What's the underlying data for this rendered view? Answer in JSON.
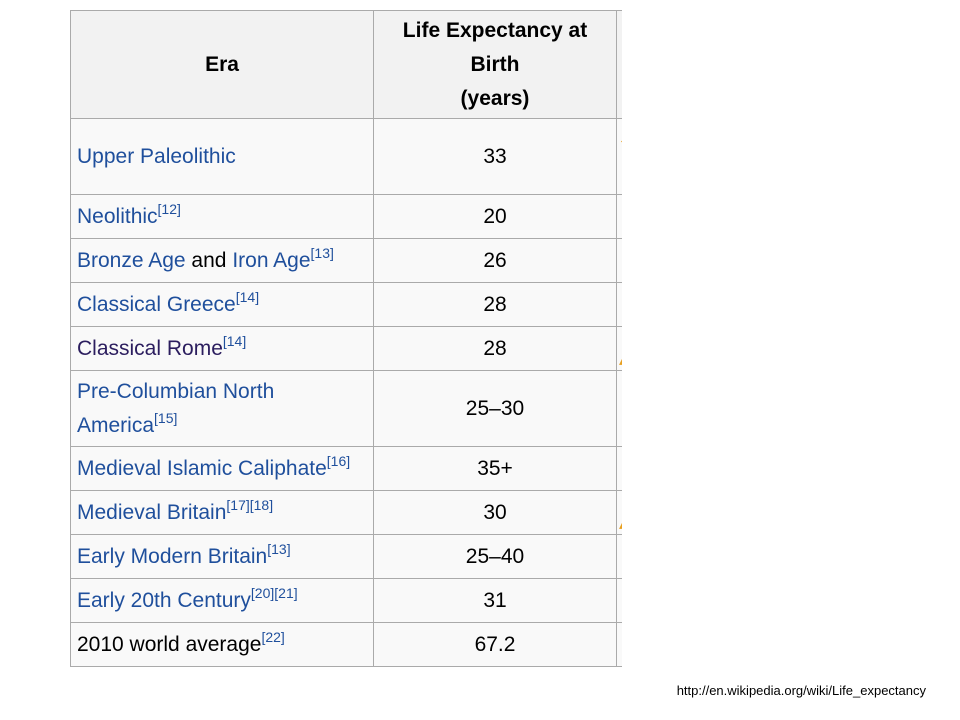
{
  "table": {
    "headers": {
      "era": "Era",
      "life_expectancy": [
        "Life Expectancy at",
        "Birth",
        "(years)"
      ]
    },
    "rows": [
      {
        "parts": [
          {
            "text": "Upper Paleolithic",
            "link": true
          }
        ],
        "refs": "",
        "value": "33"
      },
      {
        "parts": [
          {
            "text": "Neolithic",
            "link": true
          }
        ],
        "refs": "[12]",
        "value": "20"
      },
      {
        "parts": [
          {
            "text": "Bronze Age",
            "link": true
          },
          {
            "text": " and ",
            "link": false
          },
          {
            "text": "Iron Age",
            "link": true
          }
        ],
        "refs": "[13]",
        "value": "26"
      },
      {
        "parts": [
          {
            "text": "Classical Greece",
            "link": true
          }
        ],
        "refs": "[14]",
        "value": "28"
      },
      {
        "parts": [
          {
            "text": "Classical Rome",
            "link": true,
            "visited": true
          }
        ],
        "refs": "[14]",
        "value": "28"
      },
      {
        "parts": [
          {
            "text": "Pre-Columbian North America",
            "link": true
          }
        ],
        "refs": "[15]",
        "value": "25–30"
      },
      {
        "parts": [
          {
            "text": "Medieval Islamic Caliphate",
            "link": true
          }
        ],
        "refs": "[16]",
        "value": "35+"
      },
      {
        "parts": [
          {
            "text": "Medieval Britain",
            "link": true
          }
        ],
        "refs": "[17][18]",
        "value": "30"
      },
      {
        "parts": [
          {
            "text": "Early Modern Britain",
            "link": true
          }
        ],
        "refs": "[13]",
        "value": "25–40"
      },
      {
        "parts": [
          {
            "text": "Early 20th Century",
            "link": true
          }
        ],
        "refs": "[20][21]",
        "value": "31"
      },
      {
        "parts": [
          {
            "text": "2010 world average",
            "link": false
          }
        ],
        "refs": "[22]",
        "value": "67.2"
      }
    ]
  },
  "source_url": "http://en.wikipedia.org/wiki/Life_expectancy",
  "colors": {
    "link": "#1f4f9c",
    "visited_link": "#2b1d5e",
    "header_bg": "#f2f2f2",
    "cell_bg": "#f9f9f9",
    "border": "#aaaaaa"
  }
}
